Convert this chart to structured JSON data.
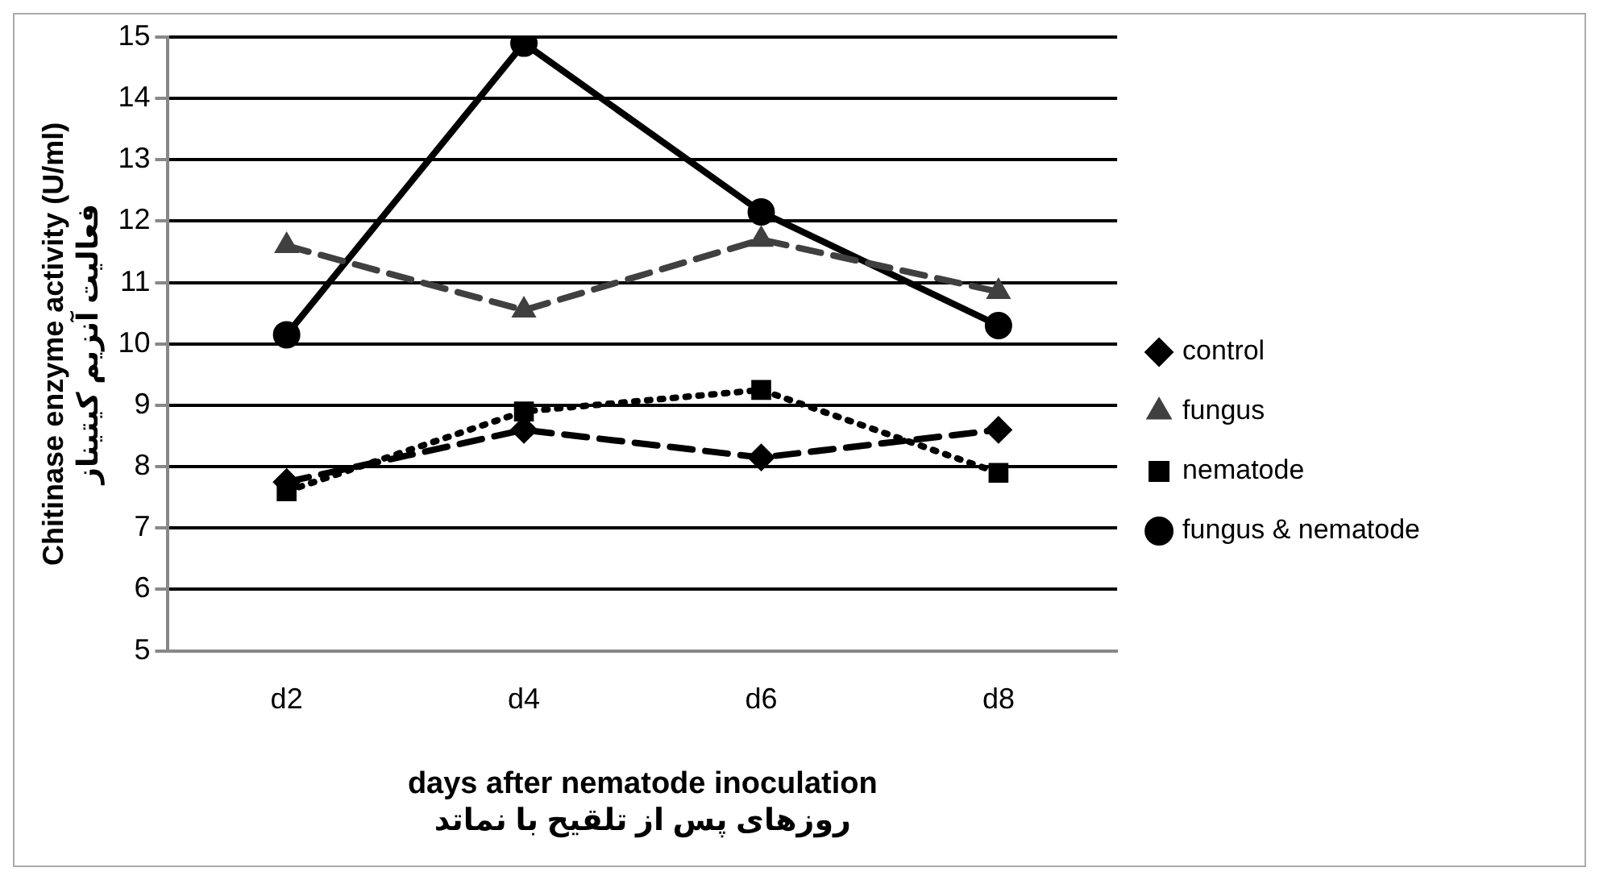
{
  "chart_data": {
    "type": "line",
    "xlabel": "days after nematode inoculation\nروزهای پس از تلقیح با نماتد",
    "ylabel": "Chitinase enzyme activity (U/ml)\nفعالیت آنزیم کیتیناز",
    "categories": [
      "d2",
      "d4",
      "d6",
      "d8"
    ],
    "series": [
      {
        "name": "control",
        "color": "#000000",
        "values": [
          7.75,
          8.6,
          8.15,
          8.6
        ],
        "marker": "diamond",
        "line_style": "dashed"
      },
      {
        "name": "fungus",
        "color": "#404040",
        "values": [
          11.6,
          10.55,
          11.7,
          10.85
        ],
        "marker": "triangle",
        "line_style": "dashed"
      },
      {
        "name": "nematode",
        "color": "#000000",
        "values": [
          7.6,
          8.9,
          9.25,
          7.9
        ],
        "marker": "square",
        "line_style": "dotted"
      },
      {
        "name": "fungus & nematode",
        "color": "#000000",
        "values": [
          10.15,
          14.9,
          12.15,
          10.3
        ],
        "marker": "circle",
        "line_style": "solid"
      }
    ],
    "ylim": [
      5,
      15
    ],
    "yticks": [
      5,
      6,
      7,
      8,
      9,
      10,
      11,
      12,
      13,
      14,
      15
    ],
    "grid": "y",
    "legend": "right"
  }
}
